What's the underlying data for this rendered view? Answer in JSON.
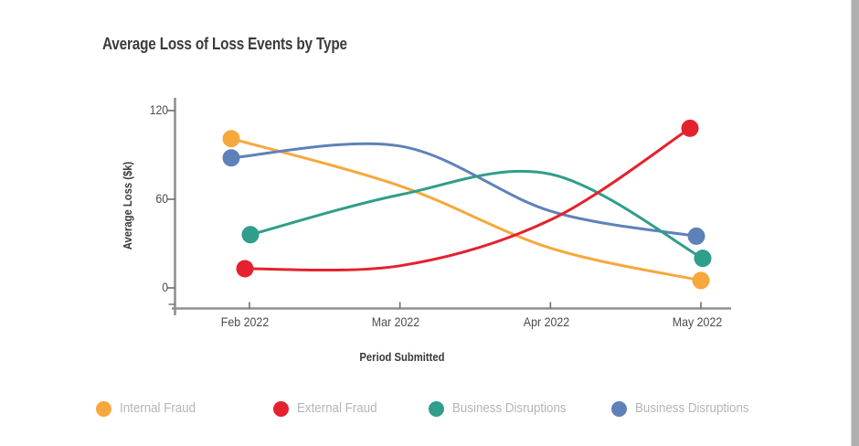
{
  "chart": {
    "title": "Average Loss of Loss Events by Type",
    "x_axis": {
      "label": "Period Submitted"
    },
    "y_axis": {
      "label": "Average Loss ($k)",
      "ticks": [
        "120",
        "60",
        "0"
      ]
    }
  },
  "chart_data": {
    "type": "line",
    "curve": "smoothed",
    "markers": "endpoints-only",
    "categories": [
      "Feb 2022",
      "Mar 2022",
      "Apr 2022",
      "May 2022"
    ],
    "series": [
      {
        "name": "Internal Fraud",
        "color": "#F6A83D",
        "values": [
          101,
          69,
          27,
          5
        ]
      },
      {
        "name": "External Fraud",
        "color": "#E4222D",
        "values": [
          13,
          15,
          46,
          108
        ]
      },
      {
        "name": "Business Disruptions",
        "color": "#2F9E8A",
        "values": [
          36,
          63,
          77,
          20
        ]
      },
      {
        "name": "Business Disruptions",
        "color": "#5F81BA",
        "values": [
          88,
          96,
          52,
          35
        ]
      }
    ],
    "title": "Average Loss of Loss Events by Type",
    "xlabel": "Period Submitted",
    "ylabel": "Average Loss ($k)",
    "ylim": [
      0,
      120
    ],
    "grid": false,
    "legend_position": "bottom"
  },
  "scrollbar_color": "#afafaf"
}
